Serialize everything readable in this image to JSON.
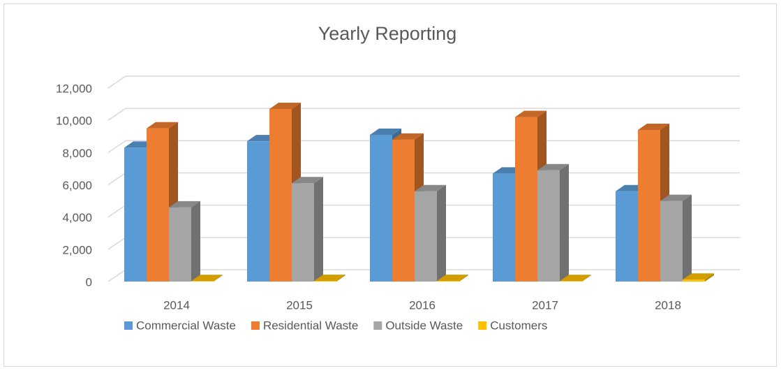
{
  "chart_data": {
    "type": "bar3d",
    "title": "Yearly Reporting",
    "categories": [
      "2014",
      "2015",
      "2016",
      "2017",
      "2018"
    ],
    "series": [
      {
        "name": "Commercial Waste",
        "color": "#5b9bd5",
        "values": [
          8300,
          8700,
          9100,
          6700,
          5600
        ]
      },
      {
        "name": "Residential Waste",
        "color": "#ed7d31",
        "values": [
          9500,
          10700,
          8800,
          10200,
          9400
        ]
      },
      {
        "name": "Outside Waste",
        "color": "#a5a5a5",
        "values": [
          4600,
          6100,
          5600,
          6900,
          5000
        ]
      },
      {
        "name": "Customers",
        "color": "#ffc000",
        "values": [
          30,
          40,
          40,
          30,
          120
        ]
      }
    ],
    "ylim": [
      0,
      12000
    ],
    "yticks": [
      {
        "value": 0,
        "label": "0"
      },
      {
        "value": 2000,
        "label": "2,000"
      },
      {
        "value": 4000,
        "label": "4,000"
      },
      {
        "value": 6000,
        "label": "6,000"
      },
      {
        "value": 8000,
        "label": "8,000"
      },
      {
        "value": 10000,
        "label": "10,000"
      },
      {
        "value": 12000,
        "label": "12,000"
      }
    ],
    "grid": true,
    "legend": "bottom"
  }
}
